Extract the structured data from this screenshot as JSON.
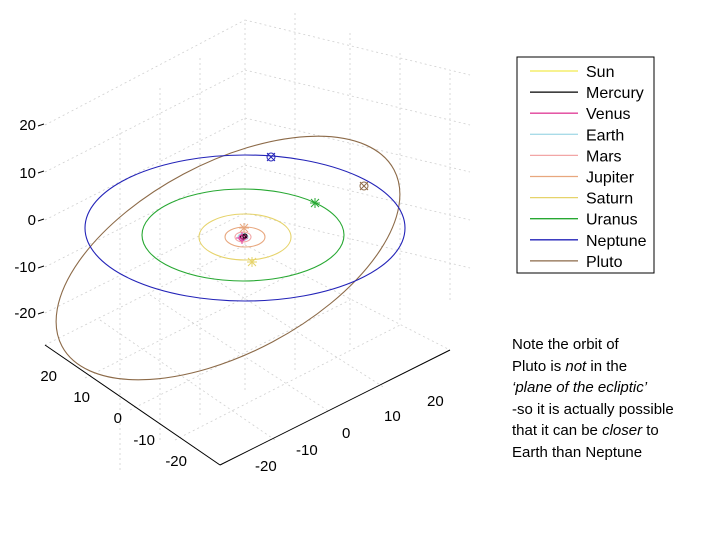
{
  "chart_data": {
    "type": "line",
    "projection": "3d",
    "grid": true,
    "axes": {
      "z_ticks": [
        "20",
        "10",
        "0",
        "-10",
        "-20"
      ],
      "y_ticks": [
        "20",
        "10",
        "0",
        "-10",
        "-20"
      ],
      "x_ticks": [
        "-20",
        "-10",
        "0",
        "10",
        "20"
      ],
      "zlim": [
        -20,
        20
      ],
      "ylim": [
        -20,
        20
      ],
      "xlim": [
        -20,
        20
      ]
    },
    "legend": {
      "placement": "top-right",
      "entries": [
        {
          "name": "Sun",
          "color": "#f2e94e"
        },
        {
          "name": "Mercury",
          "color": "#000000"
        },
        {
          "name": "Venus",
          "color": "#e0409a"
        },
        {
          "name": "Earth",
          "color": "#a9dbe8"
        },
        {
          "name": "Mars",
          "color": "#f2a6a6"
        },
        {
          "name": "Jupiter",
          "color": "#e8a77e"
        },
        {
          "name": "Saturn",
          "color": "#e6d36a"
        },
        {
          "name": "Uranus",
          "color": "#27a832"
        },
        {
          "name": "Neptune",
          "color": "#2323b8"
        },
        {
          "name": "Pluto",
          "color": "#8c6a48"
        }
      ]
    },
    "series": [
      {
        "name": "Mars",
        "orbit_radius_au": 1.52
      },
      {
        "name": "Jupiter",
        "orbit_radius_au": 5.2
      },
      {
        "name": "Saturn",
        "orbit_radius_au": 9.5
      },
      {
        "name": "Uranus",
        "orbit_radius_au": 19.2
      },
      {
        "name": "Neptune",
        "orbit_radius_au": 30.1
      },
      {
        "name": "Pluto",
        "orbit_radius_au": 39.5
      }
    ]
  },
  "note": {
    "lines": [
      [
        {
          "t": "Note the orbit of",
          "i": false
        }
      ],
      [
        {
          "t": "Pluto is ",
          "i": false
        },
        {
          "t": "not",
          "i": true
        },
        {
          "t": " in the",
          "i": false
        }
      ],
      [
        {
          "t": "‘plane of the ecliptic’",
          "i": true
        }
      ],
      [
        {
          "t": "-so it is actually possible",
          "i": false
        }
      ],
      [
        {
          "t": "that it can be ",
          "i": false
        },
        {
          "t": "closer",
          "i": true
        },
        {
          "t": " to",
          "i": false
        }
      ],
      [
        {
          "t": "Earth than Neptune",
          "i": false
        }
      ]
    ]
  }
}
